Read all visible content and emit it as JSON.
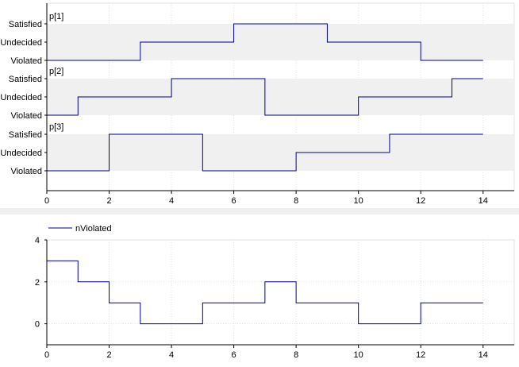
{
  "chart_data": [
    {
      "type": "line",
      "step": "post",
      "title": "",
      "xlabel": "",
      "ylabel": "",
      "xlim": [
        0,
        15
      ],
      "x_ticks": [
        0,
        2,
        4,
        6,
        8,
        10,
        12,
        14
      ],
      "y_levels": [
        "Violated",
        "Undecided",
        "Satisfied"
      ],
      "band_color": "#f0f0f0",
      "line_color": "#00008b",
      "grid": true,
      "legend": "none",
      "subplots": [
        {
          "label": "p[1]",
          "x": [
            0,
            3,
            6,
            9,
            12,
            14
          ],
          "values": [
            "Violated",
            "Undecided",
            "Satisfied",
            "Undecided",
            "Violated",
            "Violated"
          ]
        },
        {
          "label": "p[2]",
          "x": [
            0,
            1,
            4,
            7,
            10,
            13,
            14
          ],
          "values": [
            "Violated",
            "Undecided",
            "Satisfied",
            "Violated",
            "Undecided",
            "Satisfied",
            "Satisfied"
          ]
        },
        {
          "label": "p[3]",
          "x": [
            0,
            2,
            5,
            8,
            11,
            14
          ],
          "values": [
            "Violated",
            "Satisfied",
            "Violated",
            "Undecided",
            "Satisfied",
            "Satisfied"
          ]
        }
      ]
    },
    {
      "type": "line",
      "step": "post",
      "title": "",
      "xlabel": "",
      "ylabel": "",
      "xlim": [
        0,
        15
      ],
      "ylim": [
        -1,
        4
      ],
      "x_ticks": [
        0,
        2,
        4,
        6,
        8,
        10,
        12,
        14
      ],
      "y_ticks": [
        0,
        2,
        4
      ],
      "grid": true,
      "legend": "top-left",
      "line_color": "#00008b",
      "series": [
        {
          "name": "nViolated",
          "x": [
            0,
            1,
            2,
            3,
            5,
            7,
            8,
            10,
            12,
            14
          ],
          "values": [
            3,
            2,
            1,
            0,
            1,
            2,
            1,
            0,
            1,
            1
          ]
        }
      ]
    }
  ]
}
